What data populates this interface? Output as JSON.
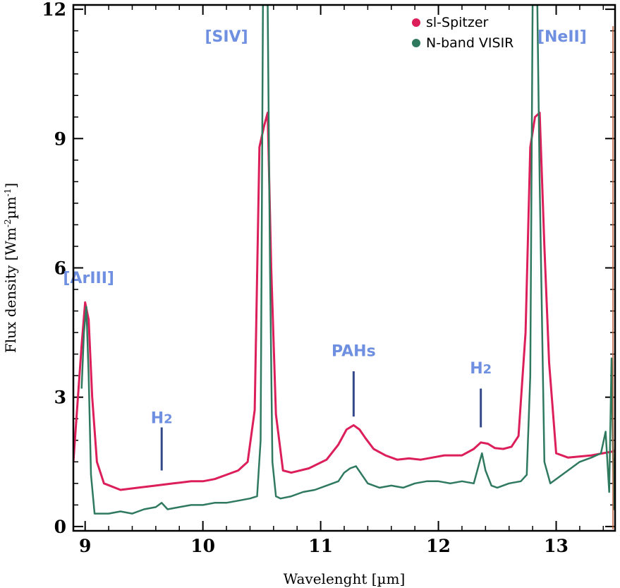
{
  "chart_data": {
    "type": "line",
    "title": "",
    "xlabel": "Wavelenght [µm]",
    "ylabel_main": "Flux density [Wm",
    "ylabel_sup1": "-2",
    "ylabel_mid": "µm",
    "ylabel_sup2": "-1",
    "ylabel_end": "]",
    "xlim": [
      8.9,
      13.5
    ],
    "ylim": [
      -0.1,
      12.1
    ],
    "xticks": [
      {
        "value": 9,
        "label": "9"
      },
      {
        "value": 10,
        "label": "10"
      },
      {
        "value": 11,
        "label": "11"
      },
      {
        "value": 12,
        "label": "12"
      },
      {
        "value": 13,
        "label": "13"
      }
    ],
    "yticks": [
      {
        "value": 0,
        "label": "0"
      },
      {
        "value": 3,
        "label": "3"
      },
      {
        "value": 6,
        "label": "6"
      },
      {
        "value": 9,
        "label": "9"
      },
      {
        "value": 12,
        "label": "12"
      }
    ],
    "legend_position": "top-right",
    "series": [
      {
        "name": "sl-Spitzer",
        "color": "#dc1e5a",
        "x": [
          8.9,
          8.97,
          9.0,
          9.03,
          9.06,
          9.1,
          9.16,
          9.3,
          9.45,
          9.6,
          9.75,
          9.9,
          10.0,
          10.1,
          10.2,
          10.3,
          10.38,
          10.44,
          10.48,
          10.52,
          10.55,
          10.58,
          10.62,
          10.68,
          10.75,
          10.9,
          11.05,
          11.15,
          11.22,
          11.28,
          11.33,
          11.38,
          11.45,
          11.55,
          11.65,
          11.75,
          11.85,
          11.95,
          12.05,
          12.2,
          12.3,
          12.36,
          12.42,
          12.48,
          12.55,
          12.62,
          12.68,
          12.74,
          12.78,
          12.82,
          12.86,
          12.9,
          12.94,
          13.0,
          13.1,
          13.3,
          13.5
        ],
        "values": [
          1.5,
          4.2,
          5.2,
          4.8,
          3.0,
          1.5,
          1.0,
          0.85,
          0.9,
          0.95,
          1.0,
          1.05,
          1.05,
          1.1,
          1.2,
          1.3,
          1.5,
          2.7,
          8.8,
          9.3,
          9.6,
          6.0,
          2.6,
          1.3,
          1.25,
          1.35,
          1.55,
          1.9,
          2.25,
          2.35,
          2.25,
          2.05,
          1.8,
          1.65,
          1.55,
          1.58,
          1.55,
          1.6,
          1.65,
          1.65,
          1.8,
          1.95,
          1.92,
          1.82,
          1.8,
          1.85,
          2.1,
          4.5,
          8.8,
          9.5,
          9.6,
          6.5,
          3.8,
          1.7,
          1.6,
          1.65,
          1.75
        ]
      },
      {
        "name": "N-band VISIR",
        "color": "#2f7a5f",
        "x": [
          8.97,
          8.99,
          9.01,
          9.03,
          9.05,
          9.08,
          9.2,
          9.3,
          9.4,
          9.5,
          9.6,
          9.65,
          9.7,
          9.8,
          9.9,
          10.0,
          10.1,
          10.2,
          10.3,
          10.4,
          10.46,
          10.49,
          10.51,
          10.53,
          10.55,
          10.57,
          10.59,
          10.62,
          10.66,
          10.75,
          10.85,
          10.95,
          11.05,
          11.15,
          11.2,
          11.25,
          11.3,
          11.35,
          11.4,
          11.5,
          11.6,
          11.7,
          11.8,
          11.9,
          12.0,
          12.1,
          12.2,
          12.3,
          12.34,
          12.37,
          12.4,
          12.45,
          12.5,
          12.6,
          12.7,
          12.75,
          12.78,
          12.8,
          12.82,
          12.84,
          12.86,
          12.9,
          12.95,
          13.0,
          13.1,
          13.2,
          13.3,
          13.38,
          13.42,
          13.45,
          13.47,
          13.49,
          13.5
        ],
        "values": [
          3.2,
          4.5,
          5.1,
          3.5,
          1.2,
          0.3,
          0.3,
          0.35,
          0.3,
          0.4,
          0.45,
          0.55,
          0.4,
          0.45,
          0.5,
          0.5,
          0.55,
          0.55,
          0.6,
          0.65,
          0.7,
          2.0,
          12.1,
          12.1,
          12.1,
          6.0,
          1.5,
          0.7,
          0.65,
          0.7,
          0.8,
          0.85,
          0.95,
          1.05,
          1.25,
          1.35,
          1.4,
          1.2,
          1.0,
          0.9,
          0.95,
          0.9,
          1.0,
          1.05,
          1.05,
          1.0,
          1.05,
          1.0,
          1.4,
          1.7,
          1.3,
          0.95,
          0.9,
          1.0,
          1.05,
          1.2,
          3.5,
          12.1,
          12.1,
          12.1,
          8.0,
          1.5,
          1.0,
          1.1,
          1.3,
          1.5,
          1.6,
          1.7,
          2.2,
          0.8,
          3.9,
          0.4,
          1.8
        ]
      }
    ],
    "annotations": [
      {
        "text": "[ArIII]",
        "x": 9.03,
        "y": 5.65
      },
      {
        "text": "[SIV]",
        "x": 10.2,
        "y": 11.25
      },
      {
        "text": "[NeII]",
        "x": 13.05,
        "y": 11.25
      },
      {
        "text": "PAHs",
        "x": 11.28,
        "y": 3.95
      },
      {
        "text": "H",
        "sub": "2",
        "x": 9.65,
        "y": 2.4
      },
      {
        "text": "H",
        "sub": "2",
        "x": 12.36,
        "y": 3.55
      }
    ],
    "markers": [
      {
        "x": 9.65,
        "y0": 1.3,
        "y1": 2.3
      },
      {
        "x": 11.28,
        "y0": 2.55,
        "y1": 3.6
      },
      {
        "x": 12.36,
        "y0": 2.3,
        "y1": 3.2
      }
    ]
  }
}
